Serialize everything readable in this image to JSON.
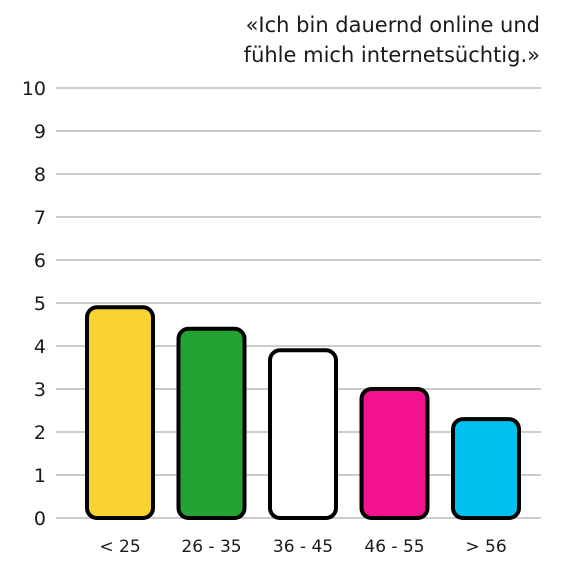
{
  "chart_data": {
    "type": "bar",
    "title_lines": [
      "«Ich bin dauernd online und",
      "fühle mich internetsüchtig.»"
    ],
    "categories": [
      "< 25",
      "26 - 35",
      "36 - 45",
      "46 - 55",
      "> 56"
    ],
    "values": [
      4.9,
      4.4,
      3.9,
      3.0,
      2.3
    ],
    "colors": [
      "#F9D331",
      "#22A334",
      "#FFFFFF",
      "#F2118F",
      "#00C0F0"
    ],
    "yticks": [
      "0",
      "1",
      "2",
      "3",
      "4",
      "5",
      "6",
      "7",
      "8",
      "9",
      "10"
    ],
    "ylim": [
      0,
      10
    ],
    "grid": true,
    "xlabel": "",
    "ylabel": ""
  }
}
